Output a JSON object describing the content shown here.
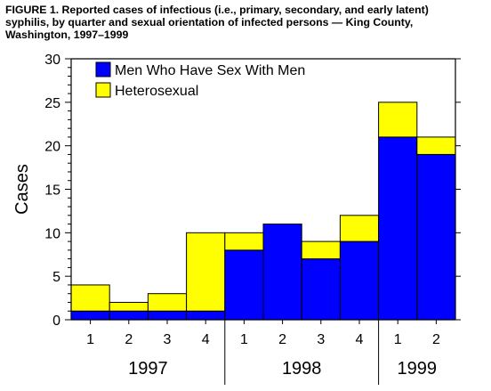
{
  "figure": {
    "title": "FIGURE 1. Reported cases of infectious (i.e., primary, secondary, and early latent)\nsyphilis, by quarter and sexual orientation of infected persons — King County,\nWashington, 1997–1999"
  },
  "colors": {
    "msm": "#0000ff",
    "hetero": "#ffff00"
  },
  "chart_data": {
    "type": "bar",
    "stacked": true,
    "categories": [
      "1",
      "2",
      "3",
      "4",
      "1",
      "2",
      "3",
      "4",
      "1",
      "2"
    ],
    "year_groups": [
      {
        "label": "1997",
        "count": 4
      },
      {
        "label": "1998",
        "count": 4
      },
      {
        "label": "1999",
        "count": 2
      }
    ],
    "series": [
      {
        "name": "Men Who Have Sex With Men",
        "values": [
          1,
          1,
          1,
          1,
          8,
          11,
          7,
          9,
          21,
          19
        ],
        "color": "#0000ff"
      },
      {
        "name": "Heterosexual",
        "values": [
          3,
          1,
          2,
          9,
          2,
          0,
          2,
          3,
          4,
          2
        ],
        "color": "#ffff00"
      }
    ],
    "title": "",
    "xlabel": "",
    "ylabel": "Cases",
    "ylim": [
      0,
      30
    ],
    "yticks": [
      "0",
      "5",
      "10",
      "15",
      "20",
      "25",
      "30"
    ],
    "legend_position": "top-left",
    "grid": false
  }
}
